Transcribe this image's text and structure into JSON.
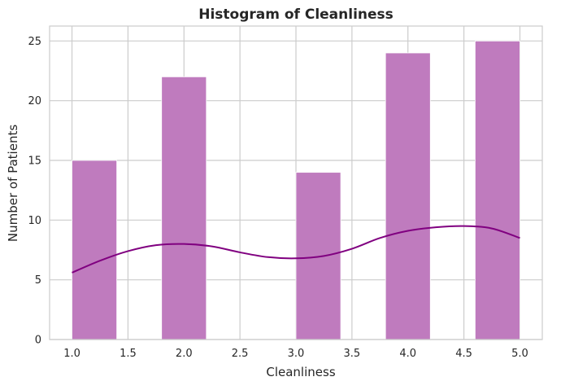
{
  "chart_data": {
    "type": "bar",
    "title": "Histogram of Cleanliness",
    "xlabel": "Cleanliness",
    "ylabel": "Number of Patients",
    "xlim": [
      0.8,
      5.2
    ],
    "ylim": [
      0,
      26.25
    ],
    "x_ticks": [
      1.0,
      1.5,
      2.0,
      2.5,
      3.0,
      3.5,
      4.0,
      4.5,
      5.0
    ],
    "x_tick_labels": [
      "1.0",
      "1.5",
      "2.0",
      "2.5",
      "3.0",
      "3.5",
      "4.0",
      "4.5",
      "5.0"
    ],
    "y_ticks": [
      0,
      5,
      10,
      15,
      20,
      25
    ],
    "y_tick_labels": [
      "0",
      "5",
      "10",
      "15",
      "20",
      "25"
    ],
    "bins": [
      {
        "start": 1.0,
        "end": 1.4,
        "count": 15
      },
      {
        "start": 1.8,
        "end": 2.2,
        "count": 22
      },
      {
        "start": 3.0,
        "end": 3.4,
        "count": 14
      },
      {
        "start": 3.8,
        "end": 4.2,
        "count": 24
      },
      {
        "start": 4.6,
        "end": 5.0,
        "count": 25
      }
    ],
    "kde": {
      "x": [
        1.0,
        1.25,
        1.5,
        1.75,
        2.0,
        2.25,
        2.5,
        2.75,
        3.0,
        3.25,
        3.5,
        3.75,
        4.0,
        4.25,
        4.5,
        4.75,
        5.0
      ],
      "y": [
        5.6,
        6.6,
        7.4,
        7.9,
        8.0,
        7.8,
        7.3,
        6.9,
        6.8,
        7.0,
        7.6,
        8.5,
        9.1,
        9.4,
        9.5,
        9.3,
        8.5
      ]
    },
    "colors": {
      "bar_fill": "#bf7bbe",
      "bar_edge": "#ffffff",
      "kde_line": "#800080",
      "grid": "#cccccc",
      "axes_edge": "#cccccc",
      "background": "#ffffff"
    },
    "grid": true,
    "legend": false
  }
}
